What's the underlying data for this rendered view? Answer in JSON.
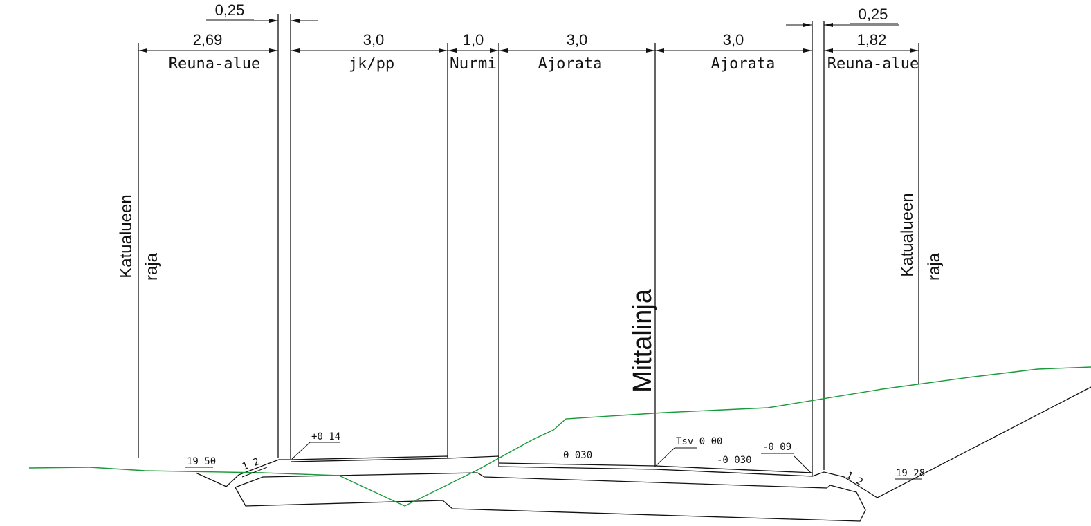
{
  "dimensions": {
    "curb_left": "0,25",
    "curb_right": "0,25",
    "edge_left": "2,69",
    "walkway": "3,0",
    "grass": "1,0",
    "lane_left": "3,0",
    "lane_right": "3,0",
    "edge_right": "1,82"
  },
  "zones": {
    "edge_left": "Reuna-alue",
    "walkway": "jk/pp",
    "grass": "Nurmi",
    "lane_left": "Ajorata",
    "lane_right": "Ajorata",
    "edge_right": "Reuna-alue"
  },
  "boundary_left": {
    "line1": "Katualueen",
    "line2": "raja"
  },
  "boundary_right": {
    "line1": "Katualueen",
    "line2": "raja"
  },
  "centerline": "Mittalinja",
  "annotations": {
    "walkway_slope": "+0 14",
    "left_height": "19 50",
    "left_slope": "1 2",
    "lane_left_slope": "0 030",
    "tsv": "Tsv 0 00",
    "lane_right_slope": "-0 030",
    "right_curb": "-0 09",
    "right_slope": "1 2",
    "right_height": "19 28"
  },
  "colors": {
    "ground_line": "#1a9a3a",
    "linework": "#111111"
  }
}
